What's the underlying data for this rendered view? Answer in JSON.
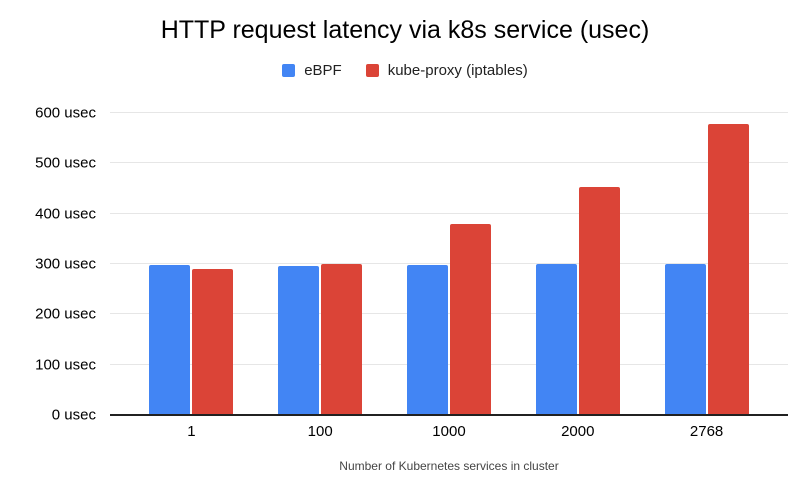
{
  "chart_data": {
    "type": "bar",
    "title": "HTTP request latency via k8s service (usec)",
    "categories": [
      "1",
      "100",
      "1000",
      "2000",
      "2768"
    ],
    "series": [
      {
        "name": "eBPF",
        "color": "#4285f4",
        "values": [
          298,
          296,
          298,
          300,
          300
        ]
      },
      {
        "name": "kube-proxy (iptables)",
        "color": "#db4437",
        "values": [
          290,
          300,
          379,
          454,
          578
        ]
      }
    ],
    "xlabel": "Number of Kubernetes services in cluster",
    "ylabel": "",
    "ylim": [
      0,
      600
    ],
    "yticks": [
      {
        "value": 0,
        "label": "0 usec"
      },
      {
        "value": 100,
        "label": "100 usec"
      },
      {
        "value": 200,
        "label": "200 usec"
      },
      {
        "value": 300,
        "label": "300 usec"
      },
      {
        "value": 400,
        "label": "400 usec"
      },
      {
        "value": 500,
        "label": "500 usec"
      },
      {
        "value": 600,
        "label": "600 usec"
      }
    ],
    "grid": true,
    "legend_position": "top",
    "colors": {
      "grid_line": "#e6e6e6",
      "axis_line": "#212121",
      "title_text": "#000000",
      "tick_text": "#000000",
      "axis_title_text": "#454545",
      "legend_text": "#212121",
      "background": "#ffffff"
    }
  }
}
